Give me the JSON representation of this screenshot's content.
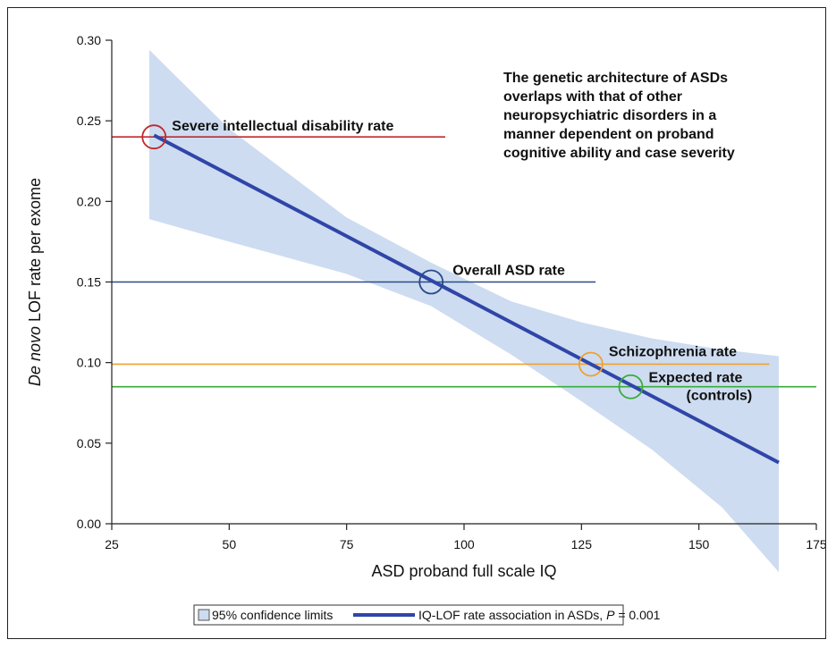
{
  "chart_data": {
    "type": "line",
    "xlabel": "ASD proband full scale IQ",
    "ylabel_italic": "De novo",
    "ylabel_rest": " LOF rate per exome",
    "xlim": [
      25,
      175
    ],
    "ylim": [
      0.0,
      0.3
    ],
    "xticks": [
      25,
      50,
      75,
      100,
      125,
      150,
      175
    ],
    "yticks": [
      "0.00",
      "0.05",
      "0.10",
      "0.15",
      "0.20",
      "0.25",
      "0.30"
    ],
    "grid": false,
    "regression_line": {
      "name": "IQ-LOF rate association in ASDs",
      "color": "#2f45a8",
      "x": [
        34,
        167
      ],
      "y": [
        0.241,
        0.038
      ]
    },
    "confidence_band": {
      "name": "95% confidence limits",
      "color": "#cddcf0",
      "x": [
        33,
        50,
        75,
        93,
        110,
        125,
        140,
        155,
        167
      ],
      "lower": [
        0.189,
        0.175,
        0.155,
        0.135,
        0.105,
        0.076,
        0.046,
        0.01,
        -0.03
      ],
      "upper": [
        0.294,
        0.245,
        0.19,
        0.162,
        0.138,
        0.125,
        0.115,
        0.108,
        0.104
      ]
    },
    "reference_lines": [
      {
        "label": "Severe intellectual disability rate",
        "y": 0.24,
        "x_end": 96,
        "color": "#c0282d",
        "circle_x": 34
      },
      {
        "label": "Overall ASD rate",
        "y": 0.15,
        "x_end": 128,
        "color": "#2b4a8a",
        "circle_x": 93
      },
      {
        "label": "Schizophrenia rate",
        "y": 0.099,
        "x_end": 165,
        "color": "#f0a030",
        "circle_x": 127
      },
      {
        "label_line1": "Expected rate",
        "label_line2": "(controls)",
        "y": 0.085,
        "x_end": 175,
        "color": "#3aab3a",
        "circle_x": 135.5
      }
    ],
    "annotation": [
      "The genetic architecture of ASDs",
      "overlaps with that of other",
      "neuropsychiatric disorders in a",
      "manner dependent on proband",
      "cognitive ability and case severity"
    ],
    "legend": {
      "band_label": "95% confidence limits",
      "line_label": "IQ-LOF rate association in ASDs, ",
      "p_italic": "P",
      "p_value": " = 0.001"
    }
  }
}
